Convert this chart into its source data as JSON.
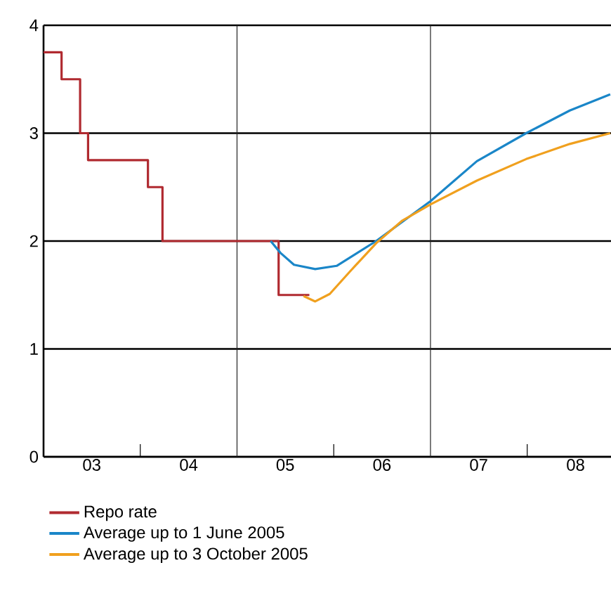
{
  "chart_data": {
    "type": "line",
    "x": [
      "2003-01-01",
      "2003-03-10",
      "2003-05-19",
      "2003-06-18",
      "2004-01-30",
      "2004-03-25",
      "2005-06-07",
      "2005-10-01"
    ],
    "series": [
      {
        "name": "Repo rate",
        "type": "step",
        "color": "#b02a30",
        "values": [
          3.75,
          3.5,
          3.0,
          2.75,
          2.5,
          2.0,
          1.5,
          1.5
        ]
      },
      {
        "name": "Average up to 1 June 2005",
        "color": "#1a86c8",
        "x": [
          "2005-05-08",
          "2005-06-14",
          "2005-08-04",
          "2005-10-23",
          "2006-01-12",
          "2006-06-10",
          "2007-01-01",
          "2007-06-25",
          "2007-12-28",
          "2008-06-10",
          "2008-11-10"
        ],
        "values": [
          2.0,
          1.89,
          1.78,
          1.74,
          1.77,
          2.0,
          2.37,
          2.74,
          3.0,
          3.21,
          3.36
        ]
      },
      {
        "name": "Average up to 3 October 2005",
        "color": "#f0a01e",
        "x": [
          "2005-09-09",
          "2005-10-23",
          "2005-12-17",
          "2006-03-04",
          "2006-06-10",
          "2006-09-17",
          "2007-01-01",
          "2007-06-25",
          "2007-12-28",
          "2008-06-10",
          "2008-11-10"
        ],
        "values": [
          1.49,
          1.44,
          1.51,
          1.72,
          1.98,
          2.19,
          2.34,
          2.56,
          2.76,
          2.9,
          3.0
        ]
      }
    ],
    "xlim": [
      "2003-01-01",
      "2008-11-13"
    ],
    "xticks": [
      {
        "value": "2003-07-02",
        "label": "03"
      },
      {
        "value": "2004-07-02",
        "label": "04"
      },
      {
        "value": "2005-07-02",
        "label": "05"
      },
      {
        "value": "2006-07-02",
        "label": "06"
      },
      {
        "value": "2007-07-02",
        "label": "07"
      },
      {
        "value": "2008-07-02",
        "label": "08"
      },
      {
        "value": "2004-01-01",
        "label": null
      },
      {
        "value": "2006-01-01",
        "label": null
      },
      {
        "value": "2008-01-01",
        "label": null
      }
    ],
    "ylim": [
      0,
      4
    ],
    "yticks": [
      0,
      1,
      2,
      3,
      4
    ],
    "grid": "y",
    "ref_lines": [
      {
        "axis": "x",
        "value": "2005-01-01",
        "color": "#222222"
      },
      {
        "axis": "x",
        "value": "2007-01-01",
        "color": "#222222"
      }
    ],
    "legend": "bottom"
  }
}
